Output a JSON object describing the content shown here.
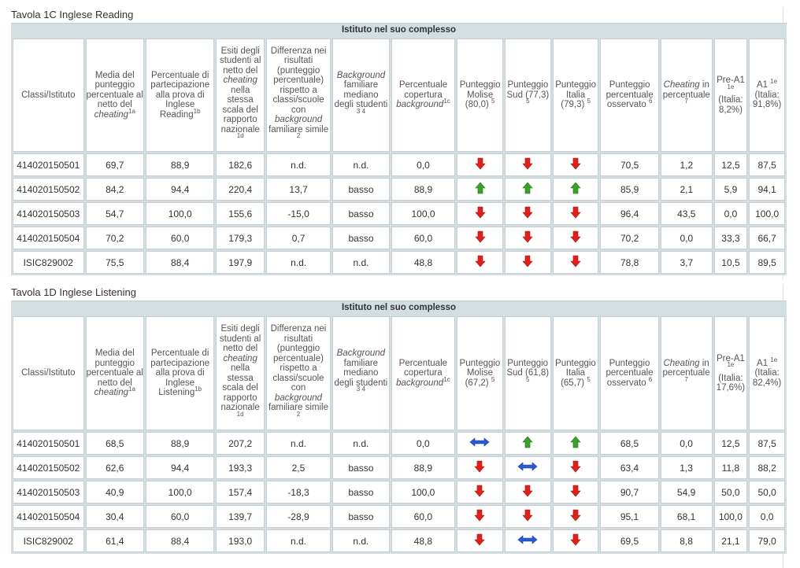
{
  "tables": [
    {
      "title": "Tavola 1C Inglese Reading",
      "band_label": "Istituto nel suo complesso",
      "headers": {
        "classi": "Classi/Istituto",
        "media_a": "Media del punteggio percentuale al netto del",
        "media_i": "cheating",
        "media_sup": "1a",
        "perc_a": "Percentuale di partecipazione alla prova di Inglese Reading",
        "perc_sup": "1b",
        "esiti_a": "Esiti degli studenti al netto del",
        "esiti_i": "cheating",
        "esiti_b": "nella stessa scala del rapporto nazionale",
        "esiti_sup": "1d",
        "diff_a": "Differenza nei risultati (punteggio percentuale) rispetto a classi/scuole con",
        "diff_i": "background",
        "diff_b": "familiare simile",
        "diff_sup": "2",
        "bg_i": "Background",
        "bg_a": "familiare mediano degli studenti",
        "bg_sup": "3 4",
        "cop_a": "Percentuale copertura",
        "cop_i": "background",
        "cop_sup": "1c",
        "p1_a": "Punteggio Molise",
        "p1_b": "(80,0)",
        "p1_sup": "5",
        "p2_a": "Punteggio Sud",
        "p2_b": "(77,3)",
        "p2_sup": "5",
        "p3_a": "Punteggio Italia",
        "p3_b": "(79,3)",
        "p3_sup": "5",
        "oss_a": "Punteggio percentuale osservato",
        "oss_sup": "6",
        "ch_i": "Cheating",
        "ch_a": "in percentuale",
        "ch_sup": "7",
        "pre_a": "Pre-A1",
        "pre_sup": "1e",
        "pre_b": "(Italia: 8,2%)",
        "a1_a": "A1",
        "a1_sup": "1e",
        "a1_b": "(Italia: 91,8%)"
      },
      "rows": [
        {
          "classe": "414020150501",
          "media": "69,7",
          "perc": "88,9",
          "esiti": "182,6",
          "diff": "n.d.",
          "bg": "n.d.",
          "cop": "0,0",
          "molise": "down",
          "sud": "down",
          "italia": "down",
          "oss": "70,5",
          "cheat": "1,2",
          "prea1": "12,5",
          "a1": "87,5"
        },
        {
          "classe": "414020150502",
          "media": "84,2",
          "perc": "94,4",
          "esiti": "220,4",
          "diff": "13,7",
          "bg": "basso",
          "cop": "88,9",
          "molise": "up",
          "sud": "up",
          "italia": "up",
          "oss": "85,9",
          "cheat": "2,1",
          "prea1": "5,9",
          "a1": "94,1"
        },
        {
          "classe": "414020150503",
          "media": "54,7",
          "perc": "100,0",
          "esiti": "155,6",
          "diff": "-15,0",
          "bg": "basso",
          "cop": "100,0",
          "molise": "down",
          "sud": "down",
          "italia": "down",
          "oss": "96,4",
          "cheat": "43,5",
          "prea1": "0,0",
          "a1": "100,0"
        },
        {
          "classe": "414020150504",
          "media": "70,2",
          "perc": "60,0",
          "esiti": "179,3",
          "diff": "0,7",
          "bg": "basso",
          "cop": "60,0",
          "molise": "down",
          "sud": "down",
          "italia": "down",
          "oss": "70,2",
          "cheat": "0,0",
          "prea1": "33,3",
          "a1": "66,7"
        },
        {
          "classe": "ISIC829002",
          "media": "75,5",
          "perc": "88,4",
          "esiti": "197,9",
          "diff": "n.d.",
          "bg": "n.d.",
          "cop": "48,8",
          "molise": "down",
          "sud": "down",
          "italia": "down",
          "oss": "78,8",
          "cheat": "3,7",
          "prea1": "10,5",
          "a1": "89,5"
        }
      ]
    },
    {
      "title": "Tavola 1D Inglese Listening",
      "band_label": "Istituto nel suo complesso",
      "headers": {
        "classi": "Classi/Istituto",
        "media_a": "Media del punteggio percentuale al netto del",
        "media_i": "cheating",
        "media_sup": "1a",
        "perc_a": "Percentuale di partecipazione alla prova di Inglese Listening",
        "perc_sup": "1b",
        "esiti_a": "Esiti degli studenti al netto del",
        "esiti_i": "cheating",
        "esiti_b": "nella stessa scala del rapporto nazionale",
        "esiti_sup": "1d",
        "diff_a": "Differenza nei risultati (punteggio percentuale) rispetto a classi/scuole con",
        "diff_i": "background",
        "diff_b": "familiare simile",
        "diff_sup": "2",
        "bg_i": "Background",
        "bg_a": "familiare mediano degli studenti",
        "bg_sup": "3 4",
        "cop_a": "Percentuale copertura",
        "cop_i": "background",
        "cop_sup": "1c",
        "p1_a": "Punteggio Molise",
        "p1_b": "(67,2)",
        "p1_sup": "5",
        "p2_a": "Punteggio Sud",
        "p2_b": "(61,8)",
        "p2_sup": "5",
        "p3_a": "Punteggio Italia",
        "p3_b": "(65,7)",
        "p3_sup": "5",
        "oss_a": "Punteggio percentuale osservato",
        "oss_sup": "6",
        "ch_i": "Cheating",
        "ch_a": "in percentuale",
        "ch_sup": "7",
        "pre_a": "Pre-A1",
        "pre_sup": "1e",
        "pre_b": "(Italia: 17,6%)",
        "a1_a": "A1",
        "a1_sup": "1e",
        "a1_b": "(Italia: 82,4%)"
      },
      "rows": [
        {
          "classe": "414020150501",
          "media": "68,5",
          "perc": "88,9",
          "esiti": "207,2",
          "diff": "n.d.",
          "bg": "n.d.",
          "cop": "0,0",
          "molise": "equal",
          "sud": "up",
          "italia": "up",
          "oss": "68,5",
          "cheat": "0,0",
          "prea1": "12,5",
          "a1": "87,5"
        },
        {
          "classe": "414020150502",
          "media": "62,6",
          "perc": "94,4",
          "esiti": "193,3",
          "diff": "2,5",
          "bg": "basso",
          "cop": "88,9",
          "molise": "down",
          "sud": "equal",
          "italia": "down",
          "oss": "63,4",
          "cheat": "1,3",
          "prea1": "11,8",
          "a1": "88,2"
        },
        {
          "classe": "414020150503",
          "media": "40,9",
          "perc": "100,0",
          "esiti": "157,4",
          "diff": "-18,3",
          "bg": "basso",
          "cop": "100,0",
          "molise": "down",
          "sud": "down",
          "italia": "down",
          "oss": "90,7",
          "cheat": "54,9",
          "prea1": "50,0",
          "a1": "50,0"
        },
        {
          "classe": "414020150504",
          "media": "30,4",
          "perc": "60,0",
          "esiti": "139,7",
          "diff": "-28,9",
          "bg": "basso",
          "cop": "60,0",
          "molise": "down",
          "sud": "down",
          "italia": "down",
          "oss": "95,1",
          "cheat": "68,1",
          "prea1": "100,0",
          "a1": "0,0"
        },
        {
          "classe": "ISIC829002",
          "media": "61,4",
          "perc": "88,4",
          "esiti": "193,0",
          "diff": "n.d.",
          "bg": "n.d.",
          "cop": "48,8",
          "molise": "down",
          "sud": "equal",
          "italia": "down",
          "oss": "69,5",
          "cheat": "8,8",
          "prea1": "21,1",
          "a1": "79,0"
        }
      ]
    }
  ],
  "icons": {
    "down": "arrow-down-icon",
    "up": "arrow-up-icon",
    "equal": "arrow-both-icon"
  },
  "colors": {
    "down": "#e0201b",
    "up": "#3aa12a",
    "equal": "#2a5bd7",
    "band": "#d3dee3"
  }
}
